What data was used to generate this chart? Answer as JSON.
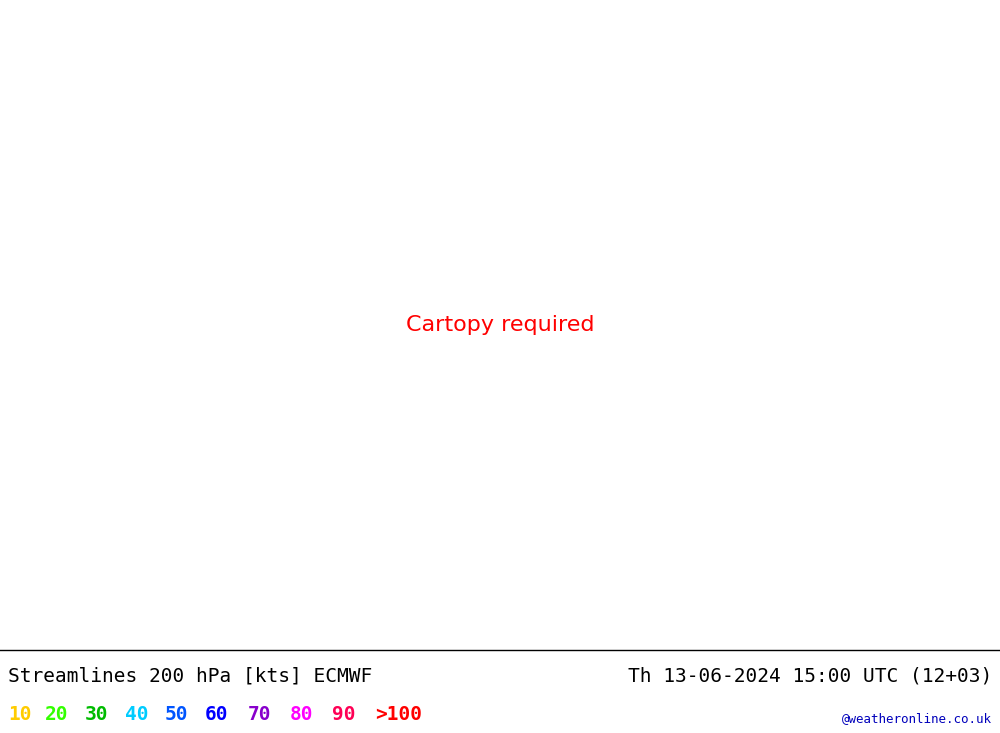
{
  "title_left": "Streamlines 200 hPa [kts] ECMWF",
  "title_right": "Th 13-06-2024 15:00 UTC (12+03)",
  "watermark": "@weatheronline.co.uk",
  "legend_values": [
    "10",
    "20",
    "30",
    "40",
    "50",
    "60",
    "70",
    "80",
    "90",
    ">100"
  ],
  "legend_colors": [
    "#ffcc00",
    "#33ff00",
    "#00bb00",
    "#00ccff",
    "#0055ff",
    "#0000ff",
    "#8800cc",
    "#ff00ff",
    "#ff0055",
    "#ff0000"
  ],
  "bg_color": "#ffffff",
  "map_bg_color": "#ccff99",
  "land_color": "#ccffaa",
  "sea_color": "#ccff99",
  "gray_land_color": "#c8c8c8",
  "coastline_color": "#888888",
  "border_color": "#aaaaaa",
  "title_fontsize": 14,
  "legend_fontsize": 14,
  "watermark_color": "#0000bb",
  "map_extent": [
    -45,
    60,
    22,
    75
  ],
  "speed_bins": [
    0,
    10,
    20,
    30,
    40,
    50,
    60,
    70,
    80,
    90,
    100,
    999
  ],
  "stream_colors": [
    "#ccff66",
    "#ffcc00",
    "#33ff00",
    "#00bb00",
    "#00ccff",
    "#0055ff",
    "#0000ff",
    "#8800cc",
    "#ff00ff",
    "#ff0055",
    "#ff0000"
  ]
}
